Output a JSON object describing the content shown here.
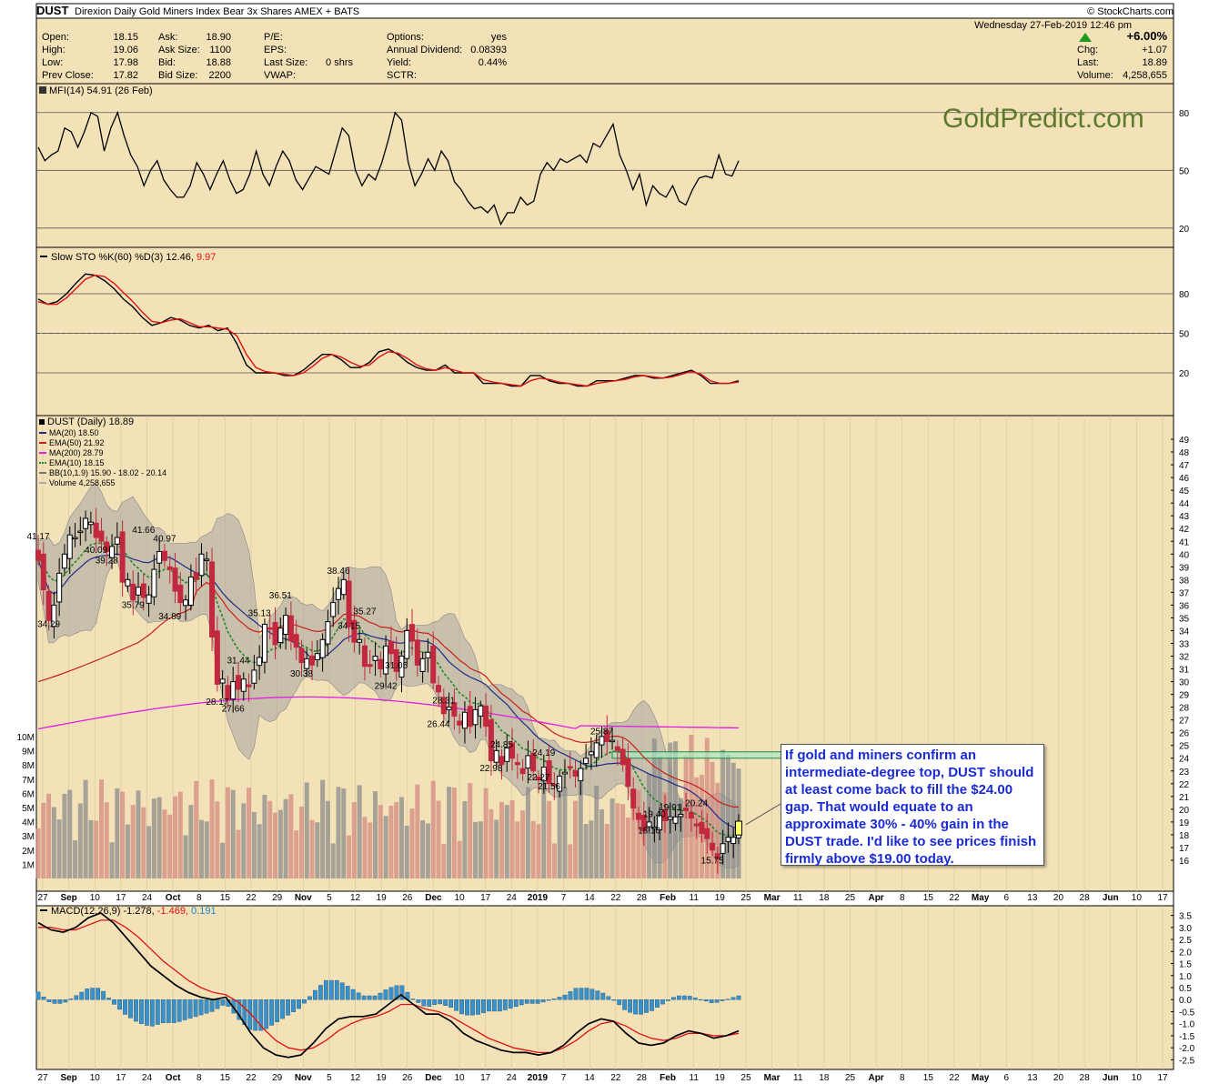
{
  "header": {
    "symbol": "DUST",
    "name": "Direxion Daily Gold Miners Index Bear 3x Shares",
    "exchange": "AMEX + BATS",
    "source": "© StockCharts.com",
    "datetime": "Wednesday   27-Feb-2019  12:46 pm",
    "quote_left": [
      {
        "label": "Open:",
        "value": "18.15"
      },
      {
        "label": "High:",
        "value": "19.06"
      },
      {
        "label": "Low:",
        "value": "17.98"
      },
      {
        "label": "Prev Close:",
        "value": "17.82"
      }
    ],
    "quote_mid": [
      {
        "label": "Ask:",
        "value": "18.90"
      },
      {
        "label": "Ask Size:",
        "value": "1100"
      },
      {
        "label": "Bid:",
        "value": "18.88"
      },
      {
        "label": "Bid Size:",
        "value": "2200"
      }
    ],
    "quote_mid2": [
      {
        "label": "P/E:",
        "value": ""
      },
      {
        "label": "EPS:",
        "value": ""
      },
      {
        "label": "Last Size:",
        "value": "0 shrs"
      },
      {
        "label": "VWAP:",
        "value": ""
      }
    ],
    "quote_right": [
      {
        "label": "Options:",
        "value": "yes"
      },
      {
        "label": "Annual Dividend:",
        "value": "0.08393"
      },
      {
        "label": "Yield:",
        "value": "0.44%"
      },
      {
        "label": "SCTR:",
        "value": ""
      }
    ],
    "summary": [
      {
        "label": "",
        "value": "+6.00%"
      },
      {
        "label": "Chg:",
        "value": "+1.07"
      },
      {
        "label": "Last:",
        "value": "18.89"
      },
      {
        "label": "Volume:",
        "value": "4,258,655"
      }
    ]
  },
  "watermark": "GoldPredict.com",
  "annotation": "If gold and miners confirm an intermediate-degree top, DUST should at least come back to fill the $24.00 gap. That would equate to an approximate 30% - 40% gain in the DUST trade. I'd like to see prices finish firmly above $19.00 today.",
  "colors": {
    "panel_bg": "#f3e2b8",
    "up_candle": "#000000",
    "down_candle": "#c2283e",
    "ma20": "#1f2a8a",
    "ema50": "#c81e1e",
    "ma200": "#e01ee0",
    "ema10": "#1f8a2a",
    "bb_fill": "#9e9e9e",
    "macd_hist": "#3a90c8",
    "gap_box": "#a8e8c0"
  },
  "chart_data": [
    {
      "type": "line",
      "panel": "mfi",
      "legend": "MFI(14) 54.91 (26 Feb)",
      "y_ticks": [
        80,
        50,
        20
      ],
      "ylim": [
        10,
        95
      ],
      "values": [
        62,
        55,
        58,
        60,
        72,
        70,
        62,
        70,
        80,
        78,
        60,
        72,
        80,
        68,
        58,
        52,
        42,
        50,
        55,
        45,
        40,
        36,
        36,
        42,
        54,
        48,
        40,
        48,
        55,
        45,
        38,
        40,
        48,
        60,
        48,
        42,
        52,
        60,
        55,
        45,
        40,
        46,
        52,
        50,
        48,
        60,
        72,
        68,
        50,
        42,
        48,
        45,
        54,
        66,
        80,
        76,
        54,
        42,
        48,
        56,
        50,
        60,
        55,
        44,
        40,
        34,
        30,
        31,
        28,
        32,
        22,
        28,
        28,
        36,
        32,
        34,
        48,
        54,
        50,
        56,
        54,
        56,
        58,
        54,
        64,
        62,
        68,
        74,
        58,
        50,
        40,
        48,
        32,
        42,
        38,
        36,
        42,
        34,
        32,
        40,
        46,
        47,
        46,
        58,
        48,
        47,
        55
      ]
    },
    {
      "type": "line",
      "panel": "stochastic",
      "legend": "Slow STO %K(60) %D(3) 12.46, 9.97",
      "series": [
        {
          "name": "%K",
          "values": [
            76,
            72,
            74,
            80,
            88,
            95,
            94,
            90,
            84,
            76,
            70,
            62,
            56,
            58,
            62,
            60,
            56,
            54,
            56,
            52,
            54,
            42,
            26,
            20,
            20,
            20,
            18,
            18,
            22,
            28,
            34,
            34,
            30,
            24,
            24,
            28,
            36,
            38,
            34,
            28,
            24,
            22,
            22,
            26,
            20,
            20,
            20,
            12,
            12,
            12,
            10,
            10,
            18,
            18,
            14,
            12,
            12,
            10,
            10,
            14,
            14,
            14,
            16,
            18,
            18,
            16,
            16,
            18,
            20,
            22,
            18,
            12,
            12,
            12,
            14
          ]
        },
        {
          "name": "%D",
          "values": [
            74,
            72,
            72,
            77,
            84,
            91,
            94,
            93,
            88,
            81,
            74,
            66,
            59,
            58,
            60,
            61,
            58,
            55,
            55,
            54,
            53,
            48,
            34,
            24,
            21,
            20,
            19,
            18,
            20,
            25,
            31,
            34,
            32,
            28,
            25,
            26,
            32,
            36,
            35,
            31,
            26,
            23,
            22,
            24,
            22,
            20,
            20,
            15,
            13,
            12,
            11,
            10,
            14,
            16,
            15,
            13,
            12,
            11,
            10,
            12,
            13,
            14,
            15,
            17,
            18,
            17,
            16,
            17,
            19,
            21,
            19,
            14,
            12,
            12,
            13
          ]
        }
      ],
      "y_ticks": [
        80,
        50,
        20
      ],
      "ylim": [
        0,
        100
      ]
    },
    {
      "type": "candlestick",
      "panel": "price",
      "title": "DUST (Daily) 18.89",
      "legend": [
        "MA(20) 18.50",
        "EMA(50) 21.92",
        "MA(200) 28.79",
        "EMA(10) 18.15",
        "BB(10,1.9) 15.90 - 18.02 - 20.14",
        "Volume 4,258,655"
      ],
      "ylim": [
        15,
        50
      ],
      "y_ticks": [
        16,
        17,
        18,
        19,
        20,
        21,
        22,
        23,
        24,
        25,
        26,
        27,
        28,
        29,
        30,
        31,
        32,
        33,
        34,
        35,
        36,
        37,
        38,
        39,
        40,
        41,
        42,
        43,
        44,
        45,
        46,
        47,
        48,
        49
      ],
      "volume_ticks": [
        "1M",
        "2M",
        "3M",
        "4M",
        "5M",
        "6M",
        "7M",
        "8M",
        "9M",
        "10M"
      ],
      "x_labels": [
        "27",
        "Sep",
        "10",
        "17",
        "24",
        "Oct",
        "8",
        "15",
        "22",
        "29",
        "Nov",
        "5",
        "12",
        "19",
        "26",
        "Dec",
        "10",
        "17",
        "24",
        "2019",
        "7",
        "14",
        "22",
        "28",
        "Feb",
        "11",
        "19",
        "25",
        "Mar",
        "11",
        "18",
        "25",
        "Apr",
        "8",
        "15",
        "22",
        "May",
        "6",
        "13",
        "20",
        "28",
        "Jun",
        "10",
        "17"
      ],
      "closes": [
        39.5,
        37.2,
        34.8,
        36.0,
        38.5,
        40.0,
        41.5,
        41.3,
        41.8,
        42.8,
        42.5,
        41.3,
        41.0,
        40.2,
        40.6,
        41.3,
        37.8,
        38.0,
        36.4,
        37.4,
        36.6,
        36.8,
        38.8,
        40.2,
        39.5,
        38.8,
        37.1,
        36.2,
        36.4,
        38.2,
        38.0,
        40.0,
        39.6,
        33.5,
        29.8,
        30.2,
        28.6,
        30.0,
        29.4,
        30.2,
        29.6,
        30.9,
        31.9,
        34.5,
        34.2,
        32.9,
        34.2,
        35.2,
        33.2,
        32.7,
        31.5,
        31.8,
        31.3,
        32.2,
        33.3,
        34.7,
        36.2,
        37.3,
        38.0,
        34.3,
        33.1,
        33.3,
        31.2,
        31.2,
        32.0,
        31.0,
        32.8,
        32.2,
        30.8,
        32.0,
        34.0,
        33.2,
        31.3,
        31.8,
        32.3,
        29.9,
        29.2,
        27.5,
        28.0,
        27.3,
        26.6,
        27.6,
        26.5,
        27.8,
        28.1,
        26.5,
        23.8,
        24.6,
        23.5,
        24.8,
        24.0,
        23.5,
        22.8,
        24.2,
        23.0,
        22.3,
        23.3,
        22.0,
        21.9,
        22.6,
        22.9,
        23.3,
        22.6,
        23.2,
        24.0,
        24.5,
        25.2,
        25.7,
        25.3,
        25.4,
        24.6,
        23.5,
        21.8,
        20.1,
        19.2,
        18.3,
        19.0,
        18.6,
        19.5,
        19.1,
        19.4,
        19.4,
        19.6,
        19.9,
        19.3,
        18.7,
        18.1,
        17.7,
        16.8,
        16.1,
        17.3,
        17.8,
        17.8,
        18.9
      ],
      "price_labels": [
        {
          "text": "41.17",
          "value": 41.17
        },
        {
          "text": "34.29",
          "value": 34.29
        },
        {
          "text": "40.09",
          "value": 40.09
        },
        {
          "text": "39.28",
          "value": 39.28
        },
        {
          "text": "35.79",
          "value": 35.79
        },
        {
          "text": "41.66",
          "value": 41.66
        },
        {
          "text": "34.89",
          "value": 34.89
        },
        {
          "text": "40.97",
          "value": 40.97
        },
        {
          "text": "28.17",
          "value": 28.17
        },
        {
          "text": "31.44",
          "value": 31.44
        },
        {
          "text": "27.66",
          "value": 27.66
        },
        {
          "text": "35.13",
          "value": 35.13
        },
        {
          "text": "36.51",
          "value": 36.51
        },
        {
          "text": "30.38",
          "value": 30.38
        },
        {
          "text": "38.46",
          "value": 38.46
        },
        {
          "text": "34.15",
          "value": 34.15
        },
        {
          "text": "29.42",
          "value": 29.42
        },
        {
          "text": "35.27",
          "value": 35.27
        },
        {
          "text": "31.05",
          "value": 31.05
        },
        {
          "text": "28.31",
          "value": 28.31
        },
        {
          "text": "26.44",
          "value": 26.44
        },
        {
          "text": "22.98",
          "value": 22.98
        },
        {
          "text": "24.85",
          "value": 24.85
        },
        {
          "text": "22.27",
          "value": 22.27
        },
        {
          "text": "24.19",
          "value": 24.19
        },
        {
          "text": "21.56",
          "value": 21.56
        },
        {
          "text": "25.87",
          "value": 25.87
        },
        {
          "text": "19.40",
          "value": 19.4
        },
        {
          "text": "18.10",
          "value": 18.1
        },
        {
          "text": "19.91",
          "value": 19.91
        },
        {
          "text": "20.24",
          "value": 20.24
        },
        {
          "text": "15.75",
          "value": 15.75
        }
      ],
      "gap_zone": [
        24.0,
        24.5
      ],
      "ma200_range": [
        26.3,
        28.8
      ]
    },
    {
      "type": "line",
      "panel": "macd",
      "legend": "MACD(12,26,9) -1.278, -1.469, 0.191",
      "y_ticks": [
        3.5,
        3.0,
        2.5,
        2.0,
        1.5,
        1.0,
        0.5,
        0.0,
        -0.5,
        -1.0,
        -1.5,
        -2.0,
        -2.5
      ],
      "y_tick_labels": [
        "3.5",
        "3.0",
        "2.5",
        "2.0",
        "1.5",
        "1.0",
        "0.5",
        "0.0",
        "-0.5",
        "-1.0",
        "-1.5",
        "-2.0",
        "-2.5"
      ],
      "ylim": [
        -2.75,
        3.75
      ],
      "series": [
        {
          "name": "MACD",
          "values": [
            3.2,
            2.9,
            2.8,
            3.0,
            3.4,
            3.6,
            3.2,
            2.6,
            2.0,
            1.4,
            1.0,
            0.6,
            0.3,
            0.1,
            0.0,
            0.1,
            -0.6,
            -1.4,
            -2.0,
            -2.3,
            -2.4,
            -2.3,
            -1.8,
            -1.2,
            -0.8,
            -0.7,
            -0.7,
            -0.6,
            -0.2,
            0.2,
            -0.2,
            -0.6,
            -0.6,
            -0.9,
            -1.4,
            -1.7,
            -1.9,
            -2.1,
            -2.2,
            -2.2,
            -2.3,
            -2.2,
            -1.9,
            -1.4,
            -1.0,
            -0.8,
            -0.9,
            -1.4,
            -1.8,
            -1.9,
            -1.8,
            -1.5,
            -1.3,
            -1.4,
            -1.6,
            -1.5,
            -1.3
          ]
        },
        {
          "name": "Signal",
          "values": [
            3.0,
            3.0,
            2.9,
            2.9,
            3.1,
            3.3,
            3.3,
            3.0,
            2.6,
            2.1,
            1.6,
            1.2,
            0.8,
            0.5,
            0.3,
            0.2,
            -0.1,
            -0.6,
            -1.2,
            -1.7,
            -2.0,
            -2.1,
            -2.0,
            -1.7,
            -1.3,
            -1.0,
            -0.8,
            -0.7,
            -0.5,
            -0.2,
            -0.2,
            -0.4,
            -0.5,
            -0.7,
            -1.0,
            -1.3,
            -1.6,
            -1.8,
            -2.0,
            -2.1,
            -2.2,
            -2.2,
            -2.0,
            -1.7,
            -1.3,
            -1.0,
            -0.9,
            -1.1,
            -1.4,
            -1.6,
            -1.7,
            -1.6,
            -1.4,
            -1.4,
            -1.5,
            -1.5,
            -1.4
          ]
        }
      ]
    }
  ]
}
